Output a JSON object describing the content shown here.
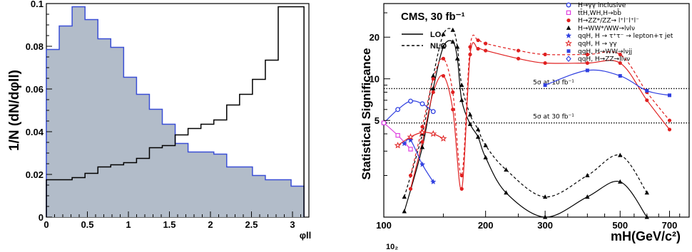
{
  "chart_data": [
    {
      "type": "histogram",
      "xlabel": "φll",
      "ylabel": "1/N (dN/dφll)",
      "xlim": [
        0,
        3.2
      ],
      "ylim": [
        0,
        0.1
      ],
      "x_ticks": [
        "0",
        "0.5",
        "1",
        "1.5",
        "2",
        "2.5",
        "3"
      ],
      "y_ticks": [
        "0",
        "0.02",
        "0.04",
        "0.06",
        "0.08",
        "0.1"
      ],
      "bin_edges": [
        0,
        0.157,
        0.314,
        0.471,
        0.628,
        0.785,
        0.942,
        1.099,
        1.256,
        1.413,
        1.57,
        1.727,
        1.884,
        2.041,
        2.198,
        2.355,
        2.512,
        2.669,
        2.826,
        2.983,
        3.14
      ],
      "series": [
        {
          "fill": "#b2bcc9",
          "edge": "#3a4fd6",
          "values": [
            0.0785,
            0.0895,
            0.0985,
            0.0925,
            0.0835,
            0.0795,
            0.0655,
            0.0575,
            0.0505,
            0.0435,
            0.0345,
            0.0305,
            0.0305,
            0.0295,
            0.0235,
            0.0235,
            0.0195,
            0.0175,
            0.0175,
            0.0145
          ]
        },
        {
          "edge": "#000000",
          "values": [
            0.0175,
            0.0175,
            0.0185,
            0.0205,
            0.0235,
            0.0245,
            0.0255,
            0.0275,
            0.0325,
            0.0335,
            0.0385,
            0.0415,
            0.0435,
            0.0455,
            0.0525,
            0.0575,
            0.0645,
            0.0735,
            0.0985,
            0.0985
          ]
        }
      ]
    },
    {
      "type": "line",
      "ylabel": "Statistical Significance",
      "xlabel": "mH(GeV/c²)",
      "x_scale": "log",
      "y_scale": "log",
      "xlim": [
        100,
        800
      ],
      "ylim": [
        1,
        35
      ],
      "x_ticks": [
        "100",
        "200",
        "300",
        "500",
        "700"
      ],
      "x_offset_label": "10₂",
      "y_ticks": [
        "5",
        "10",
        "20"
      ],
      "annotation_title": "CMS, 30 fb⁻¹",
      "style_legend": [
        {
          "label": "LO",
          "dash": "solid"
        },
        {
          "label": "NLO",
          "dash": "dashed"
        }
      ],
      "reference_lines": [
        {
          "y": 8.5,
          "label": "5σ at 10 fb⁻¹"
        },
        {
          "y": 4.8,
          "label": "5σ at 30 fb⁻¹"
        }
      ],
      "legend": [
        {
          "label": "H→γγ inclusive",
          "color": "#2f3fe0",
          "marker": "open-circle"
        },
        {
          "label": "tt̄H,WH,H→bb̄",
          "color": "#e040e0",
          "marker": "open-square"
        },
        {
          "label": "H→ZZ*/ZZ→ l⁺l⁻l⁺l⁻",
          "color": "#e02020",
          "marker": "filled-circle"
        },
        {
          "label": "H→WW*/WW→lνlν",
          "color": "#000000",
          "marker": "filled-triangle"
        },
        {
          "label": "qqH, H → τ⁺τ⁻ → lepton+τ jet",
          "color": "#2f3fe0",
          "marker": "star"
        },
        {
          "label": "qqH, H → γγ",
          "color": "#e02020",
          "marker": "open-star"
        },
        {
          "label": "qqH, H→WW→lνjj",
          "color": "#2f3fe0",
          "marker": "filled-square"
        },
        {
          "label": "qqH, H→ZZ→llνν",
          "color": "#2f3fe0",
          "marker": "open-diamond"
        }
      ],
      "series": [
        {
          "name": "H→WW*/WW→lνlν",
          "line": "LO",
          "color": "#000000",
          "x": [
            115,
            130,
            140,
            150,
            160,
            165,
            170,
            180,
            190,
            200,
            230,
            300,
            400,
            500,
            600
          ],
          "y": [
            1.1,
            3.2,
            8.5,
            17,
            18.5,
            14,
            7,
            4.7,
            3.8,
            2.7,
            1.5,
            1.0,
            1.4,
            1.8,
            1.0
          ]
        },
        {
          "name": "H→WW*/WW→lνlν",
          "line": "NLO",
          "color": "#000000",
          "x": [
            115,
            130,
            140,
            150,
            160,
            165,
            170,
            180,
            190,
            200,
            230,
            300,
            400,
            500,
            600
          ],
          "y": [
            1.4,
            4,
            10.5,
            21,
            22.5,
            17,
            9,
            5.5,
            4.3,
            3.3,
            2.2,
            1.4,
            2.0,
            2.8,
            1.5
          ]
        },
        {
          "name": "H→ZZ*/ZZ→ l⁺l⁻l⁺l⁻",
          "line": "LO",
          "color": "#e02020",
          "x": [
            120,
            130,
            140,
            150,
            160,
            170,
            180,
            190,
            200,
            250,
            300,
            400,
            500,
            600,
            700
          ],
          "y": [
            1.6,
            3.5,
            8,
            10.5,
            6,
            1.6,
            15,
            16.5,
            16,
            14,
            13,
            13,
            13,
            7,
            4.3
          ]
        },
        {
          "name": "H→ZZ*/ZZ→ l⁺l⁻l⁺l⁻",
          "line": "NLO",
          "color": "#e02020",
          "x": [
            120,
            130,
            140,
            150,
            160,
            170,
            180,
            190,
            200,
            250,
            300,
            400,
            500,
            600,
            700
          ],
          "y": [
            2,
            4.5,
            10,
            14,
            8,
            2,
            17,
            19,
            18,
            16,
            15,
            15,
            15,
            8,
            5
          ]
        },
        {
          "name": "H→γγ inclusive",
          "color": "#2f3fe0",
          "x": [
            100,
            110,
            120,
            130,
            140
          ],
          "y": [
            4.8,
            6.0,
            6.9,
            6.6,
            5.8
          ]
        },
        {
          "name": "qqH, H→WW→lνjj",
          "color": "#2f3fe0",
          "x": [
            300,
            400,
            500,
            600,
            700
          ],
          "y": [
            9,
            11.5,
            10.5,
            8.2,
            7.6
          ]
        },
        {
          "name": "qqH, H → τ⁺τ⁻ → lepton+τ jet",
          "color": "#2f3fe0",
          "x": [
            115,
            120,
            130,
            140
          ],
          "y": [
            3.4,
            3.6,
            2.4,
            1.8
          ]
        },
        {
          "name": "tt̄H,WH,H→bb̄",
          "color": "#e040e0",
          "x": [
            100,
            110,
            120
          ],
          "y": [
            4.8,
            3.9,
            3.1
          ]
        },
        {
          "name": "qqH, H → γγ",
          "color": "#e02020",
          "x": [
            110,
            120,
            130,
            140,
            150
          ],
          "y": [
            3.3,
            3.8,
            4.1,
            4.0,
            3.7
          ]
        }
      ]
    }
  ]
}
